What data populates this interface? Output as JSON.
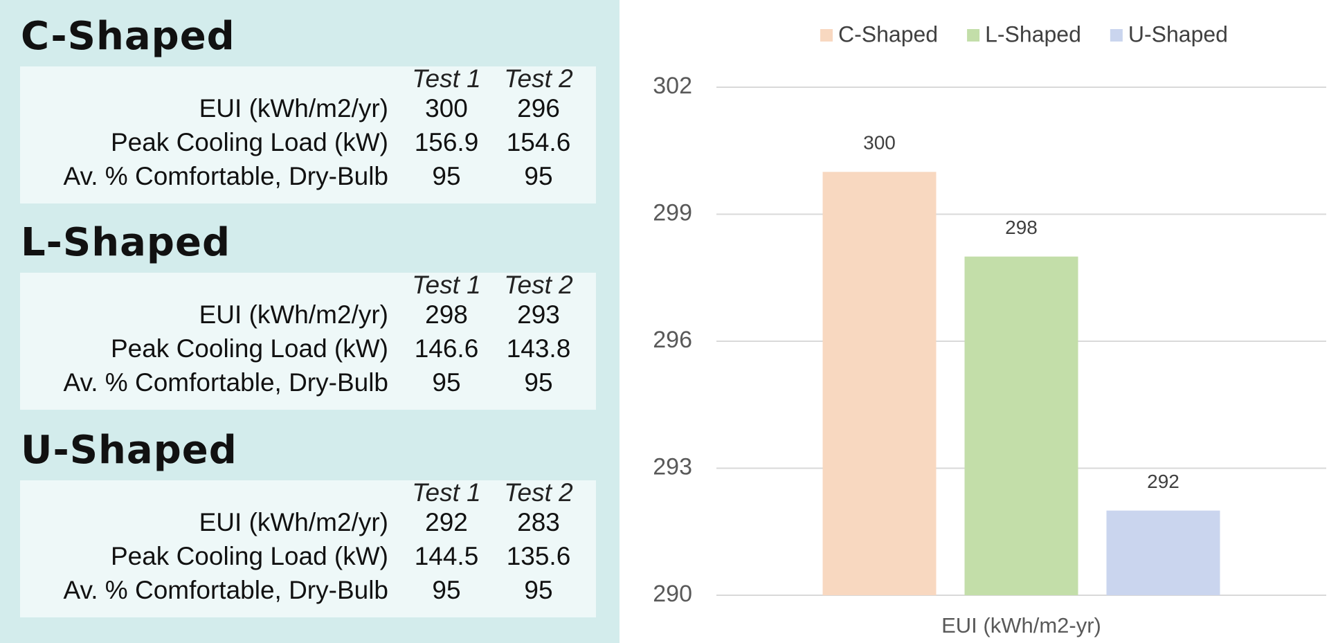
{
  "panels": [
    {
      "title": "C-Shaped",
      "columns": [
        "Test 1",
        "Test 2"
      ],
      "rows": [
        {
          "label": "EUI (kWh/m2/yr)",
          "values": [
            300,
            296
          ]
        },
        {
          "label": "Peak Cooling Load (kW)",
          "values": [
            156.9,
            154.6
          ]
        },
        {
          "label": "Av. % Comfortable, Dry-Bulb",
          "values": [
            95,
            95
          ]
        }
      ]
    },
    {
      "title": "L-Shaped",
      "columns": [
        "Test 1",
        "Test 2"
      ],
      "rows": [
        {
          "label": "EUI (kWh/m2/yr)",
          "values": [
            298,
            293
          ]
        },
        {
          "label": "Peak Cooling Load (kW)",
          "values": [
            146.6,
            143.8
          ]
        },
        {
          "label": "Av. % Comfortable, Dry-Bulb",
          "values": [
            95,
            95
          ]
        }
      ]
    },
    {
      "title": "U-Shaped",
      "columns": [
        "Test 1",
        "Test 2"
      ],
      "rows": [
        {
          "label": "EUI (kWh/m2/yr)",
          "values": [
            292,
            283
          ]
        },
        {
          "label": "Peak Cooling Load (kW)",
          "values": [
            144.5,
            135.6
          ]
        },
        {
          "label": "Av. % Comfortable, Dry-Bulb",
          "values": [
            95,
            95
          ]
        }
      ]
    }
  ],
  "chart_data": {
    "type": "bar",
    "categories": [
      "EUI (kWh/m2-yr)"
    ],
    "series": [
      {
        "name": "C-Shaped",
        "color": "#f8d8c0",
        "values": [
          300
        ]
      },
      {
        "name": "L-Shaped",
        "color": "#c3dea9",
        "values": [
          298
        ]
      },
      {
        "name": "U-Shaped",
        "color": "#cad5ee",
        "values": [
          292
        ]
      }
    ],
    "ylim": [
      290,
      302
    ],
    "yticks": [
      290,
      293,
      296,
      299,
      302
    ],
    "grid": true,
    "legend": "top"
  }
}
